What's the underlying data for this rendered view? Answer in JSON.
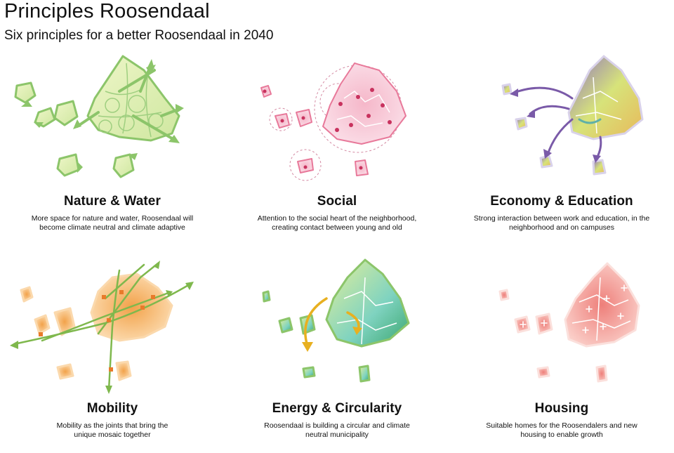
{
  "header": {
    "title": "Principles Roosendaal",
    "subtitle": "Six principles for a better Roosendaal in 2040"
  },
  "principles": [
    {
      "title": "Nature & Water",
      "description_lines": [
        "More space for nature and water, Roosendaal will",
        "become climate neutral and climate adaptive"
      ],
      "color": "#8cc56a"
    },
    {
      "title": "Social",
      "description_lines": [
        "Attention to the social heart of the neighborhood,",
        "creating contact between young and old"
      ],
      "color": "#e8799a"
    },
    {
      "title": "Economy & Education",
      "description_lines": [
        "Strong interaction between work and education, in the",
        "neighborhood and on campuses"
      ],
      "color": "#7a5aa8"
    },
    {
      "title": "Mobility",
      "description_lines": [
        "Mobility as the joints that bring the",
        "unique mosaic together"
      ],
      "color": "#f2a24a"
    },
    {
      "title": "Energy & Circularity",
      "description_lines": [
        "Roosendaal is building a circular and climate",
        "neutral municipality"
      ],
      "color": "#5bbf9a"
    },
    {
      "title": "Housing",
      "description_lines": [
        "Suitable homes for the Roosendalers and new",
        "housing to enable growth"
      ],
      "color": "#ee7f7a"
    }
  ]
}
